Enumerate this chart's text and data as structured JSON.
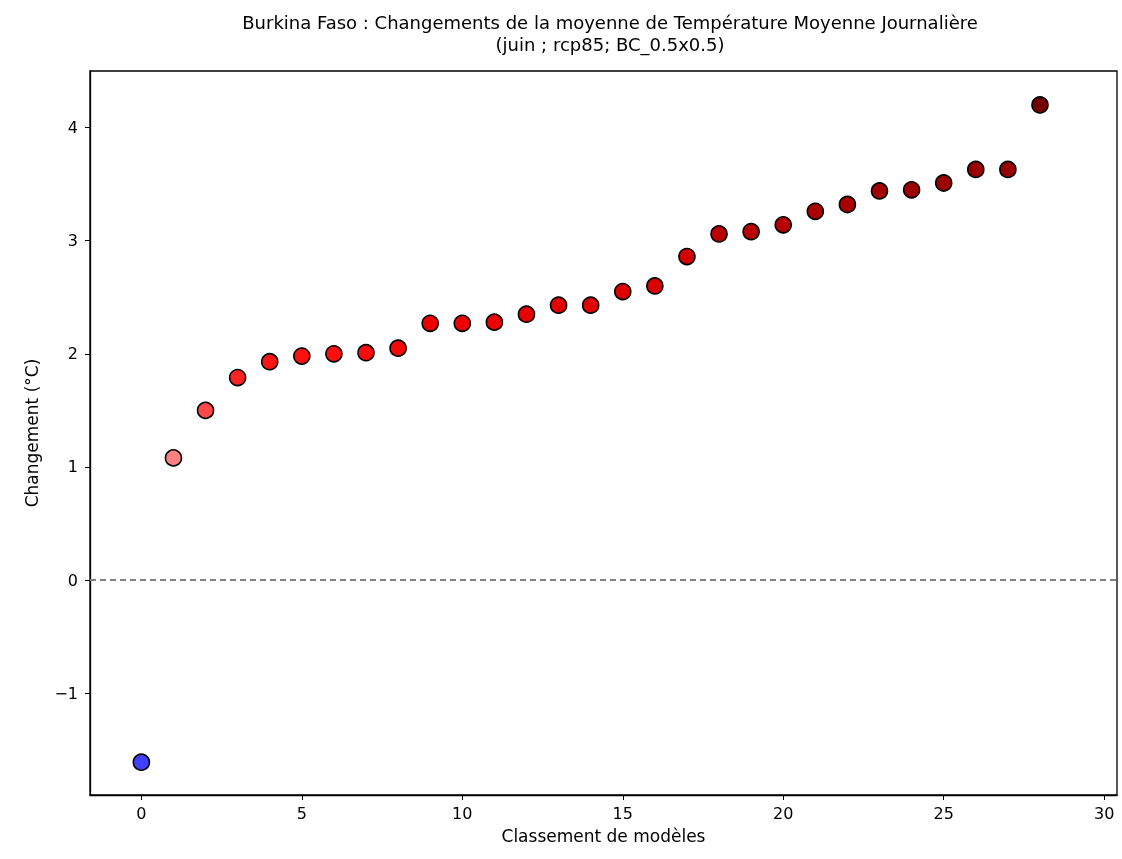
{
  "chart_data": {
    "type": "scatter",
    "title": "Burkina Faso : Changements de la moyenne de Température Moyenne Journalière",
    "subtitle": "(juin ; rcp85; BC_0.5x0.5)",
    "xlabel": "Classement de modèles",
    "ylabel": "Changement (°C)",
    "x": [
      0,
      1,
      2,
      3,
      4,
      5,
      6,
      7,
      8,
      9,
      10,
      11,
      12,
      13,
      14,
      15,
      16,
      17,
      18,
      19,
      20,
      21,
      22,
      23,
      24,
      25,
      26,
      27,
      28
    ],
    "values": [
      -1.61,
      1.08,
      1.5,
      1.79,
      1.93,
      1.98,
      2.0,
      2.01,
      2.05,
      2.27,
      2.27,
      2.28,
      2.35,
      2.43,
      2.43,
      2.55,
      2.6,
      2.86,
      3.06,
      3.08,
      3.14,
      3.26,
      3.32,
      3.44,
      3.45,
      3.51,
      3.63,
      3.63,
      4.2
    ],
    "colors": [
      "#4040ff",
      "#ff8080",
      "#ff4848",
      "#ff2222",
      "#ff1414",
      "#ff1010",
      "#ff0c0c",
      "#fa0a0a",
      "#f50808",
      "#ee0000",
      "#ec0000",
      "#ea0000",
      "#e60000",
      "#e20000",
      "#e00000",
      "#dc0000",
      "#d80000",
      "#d20000",
      "#bb0000",
      "#b80000",
      "#b40000",
      "#aa0000",
      "#a80000",
      "#a00000",
      "#9e0000",
      "#9a0000",
      "#980000",
      "#960000",
      "#750000"
    ],
    "marker": "circle",
    "grid": false,
    "xlim": [
      -1.6,
      30.4
    ],
    "ylim": [
      -1.9,
      4.5
    ],
    "xticks": [
      0,
      5,
      10,
      15,
      20,
      25,
      30
    ],
    "yticks": [
      {
        "value": -1,
        "label": "−1"
      },
      0,
      1,
      2,
      3,
      4
    ],
    "ref_lines": [
      {
        "axis": "y",
        "value": 0,
        "color": "#808080",
        "line_style": "dashed"
      }
    ]
  }
}
